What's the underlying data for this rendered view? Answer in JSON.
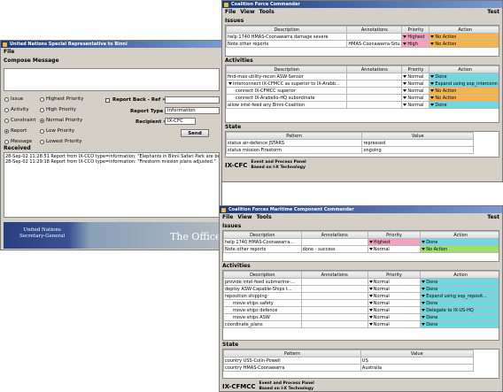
{
  "un_window": {
    "title": "United Nations Special Representative to Binni",
    "menu": [
      "File"
    ],
    "compose_label": "Compose Message",
    "types": [
      "Issue",
      "Activity",
      "Constraint",
      "Report",
      "Message"
    ],
    "priorities": [
      "Highest Priority",
      "High Priority",
      "Normal Priority",
      "Low Priority",
      "Lowest Priority"
    ],
    "report_back_label": "Report Back - Ref =",
    "report_type_label": "Report Type =",
    "report_type_value": "information",
    "recipient_label": "Recipient =",
    "recipient_value": "IX-CFC",
    "send": "Send",
    "received_label": "Received",
    "received": [
      "28-Sep-02 11:28:51 Report from IX-CCO type=information: \"Elephants in Binni Safari Park are bei",
      "28-Sep-02 11:29:18 Report from IX-CCO type=information: \"Firestorm mission plans adjusted.\""
    ],
    "banner_text": [
      "United Nations",
      "Secretary-General"
    ],
    "banner_office": "The Office"
  },
  "windows": [
    {
      "title": "Coalition Force Commander",
      "menu": [
        "File",
        "View",
        "Tools"
      ],
      "menu_right": "Test",
      "issues": {
        "label": "Issues",
        "columns": [
          "Description",
          "Annotations",
          "Priority",
          "Action"
        ],
        "rows": [
          {
            "cells": [
              "help 1740 HMAS-Coonawarra damage severe",
              "",
              "Highest",
              "No Action"
            ],
            "priority_color": "#f4a0c0",
            "action_color": "#f6b44a"
          },
          {
            "cells": [
              "Note other reports",
              "HMAS-Coonawarra-Situ...",
              "High",
              "No Action"
            ],
            "priority_color": "#f4a0c0",
            "action_color": "#f6b44a"
          }
        ]
      },
      "activities": {
        "label": "Activities",
        "columns": [
          "Description",
          "Annotations",
          "Priority",
          "Action"
        ],
        "rows": [
          {
            "cells": [
              "find-max-utility-recon ASW-Sensor",
              "",
              "Normal",
              "Done"
            ],
            "action_color": "#6fd8e0"
          },
          {
            "cells": [
              "interconnect IX-CFMCC as superior to IX-Arabb...",
              "",
              "Normal",
              "Expand using sop_interconn"
            ],
            "action_color": "#6fd8e0"
          },
          {
            "cells": [
              "connect IX-CFMCC superior",
              "",
              "Normal",
              "No Action"
            ],
            "action_color": "#f6b44a"
          },
          {
            "cells": [
              "connect IX-Arabello-HQ subordinate",
              "",
              "Normal",
              "No Action"
            ],
            "action_color": "#f6b44a"
          },
          {
            "cells": [
              "allow intel-feed any Binni-Coalition",
              "",
              "Normal",
              "Done"
            ],
            "action_color": "#6fd8e0"
          }
        ]
      },
      "state": {
        "label": "State",
        "columns": [
          "Pattern",
          "Value"
        ],
        "rows": [
          {
            "cells": [
              "status air-defence JSTARS",
              "repressed"
            ]
          },
          {
            "cells": [
              "status mission Firestorm",
              "ongoing"
            ]
          }
        ]
      },
      "footer_name": "IX-CFC",
      "footer_lines": [
        "Event and Process Panel",
        "Based on I-X Technology"
      ]
    },
    {
      "title": "Coalition Forces Maritime Component Commander",
      "menu": [
        "File",
        "View",
        "Tools"
      ],
      "menu_right": "Test",
      "issues": {
        "label": "Issues",
        "columns": [
          "Description",
          "Annotations",
          "Priority",
          "Action"
        ],
        "rows": [
          {
            "cells": [
              "help 1740 HMAS-Coonawarra...",
              "",
              "Highest",
              "Done"
            ],
            "priority_color": "#f4a0c0",
            "action_color": "#6fd8e0"
          },
          {
            "cells": [
              "Note other reports",
              "done - success",
              "Normal",
              "No Action"
            ],
            "action_color": "#9be26a"
          }
        ]
      },
      "activities": {
        "label": "Activities",
        "columns": [
          "Description",
          "Annotations",
          "Priority",
          "Action"
        ],
        "rows": [
          {
            "cells": [
              "provide intel-feed submarine-...",
              "",
              "Normal",
              "Done"
            ],
            "action_color": "#6fd8e0"
          },
          {
            "cells": [
              "deploy ASW-Capable-Ships t...",
              "",
              "Normal",
              "Done"
            ],
            "action_color": "#6fd8e0"
          },
          {
            "cells": [
              "reposition shipping",
              "",
              "Normal",
              "Expand using sop_reposit..."
            ],
            "action_color": "#6fd8e0"
          },
          {
            "cells": [
              "move-ships safety",
              "",
              "Normal",
              "Done"
            ],
            "action_color": "#6fd8e0"
          },
          {
            "cells": [
              "move-ships defence",
              "",
              "Normal",
              "Delegate to IX-US-HQ"
            ],
            "action_color": "#6fd8e0"
          },
          {
            "cells": [
              "move-ships ASW",
              "",
              "Normal",
              "Done"
            ],
            "action_color": "#6fd8e0"
          },
          {
            "cells": [
              "coordinate_plans",
              "",
              "Normal",
              "Done"
            ],
            "action_color": "#6fd8e0"
          }
        ]
      },
      "state": {
        "label": "State",
        "columns": [
          "Pattern",
          "Value"
        ],
        "rows": [
          {
            "cells": [
              "country USS-Colin-Powell",
              "US"
            ]
          },
          {
            "cells": [
              "country HMAS-Coonawarra",
              "Australia"
            ]
          }
        ]
      },
      "footer_name": "IX-CFMCC",
      "footer_lines": [
        "Event and Process Panel",
        "Based on I-X Technology"
      ]
    }
  ]
}
